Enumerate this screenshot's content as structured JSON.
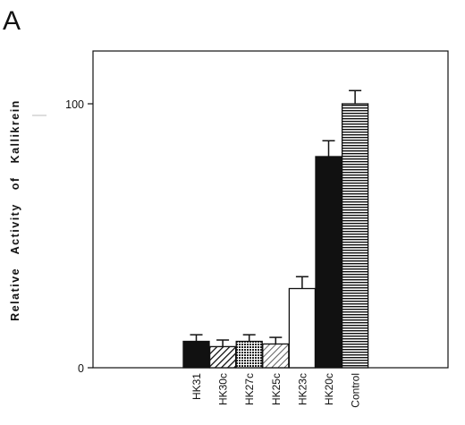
{
  "chart_data": {
    "type": "bar",
    "panel_label": "A",
    "ylabel": "Relative Activity of Kallikrein",
    "ylim": [
      0,
      100
    ],
    "yticks": [
      0,
      100
    ],
    "categories": [
      "HK31",
      "HK30c",
      "HK27c",
      "HK25c",
      "HK23c",
      "HK20c",
      "Control"
    ],
    "values": [
      10,
      8,
      10,
      9,
      30,
      80,
      100
    ],
    "errors": [
      2.5,
      2.5,
      2.5,
      2.5,
      4.5,
      6,
      5
    ],
    "fills": [
      "solid-black",
      "diagonal-hatch",
      "crosshatch",
      "light-diagonal-hatch",
      "white",
      "solid-black",
      "horizontal-stripes"
    ],
    "grid": false,
    "legend": "none"
  }
}
